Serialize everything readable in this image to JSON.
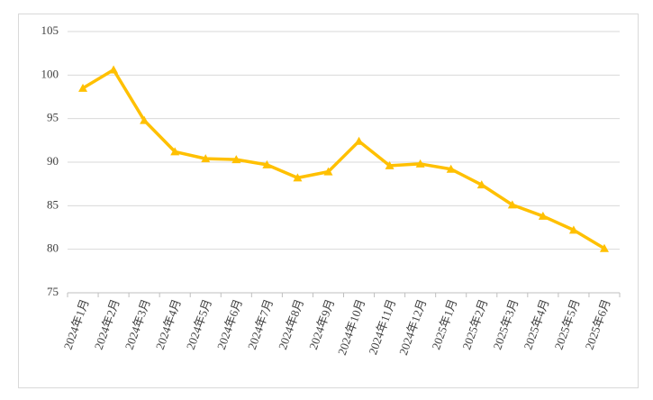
{
  "chart_data": {
    "type": "line",
    "categories": [
      "2024年1月",
      "2024年2月",
      "2024年3月",
      "2024年4月",
      "2024年5月",
      "2024年6月",
      "2024年7月",
      "2024年8月",
      "2024年9月",
      "2024年10月",
      "2024年11月",
      "2024年12月",
      "2025年1月",
      "2025年2月",
      "2025年3月",
      "2025年4月",
      "2025年5月",
      "2025年6月"
    ],
    "values": [
      98.5,
      100.6,
      94.8,
      91.2,
      90.4,
      90.3,
      89.7,
      88.2,
      88.9,
      92.4,
      89.6,
      89.8,
      89.2,
      87.4,
      85.1,
      83.8,
      82.2,
      80.1
    ],
    "color": "#ffc000",
    "ylim": [
      75,
      105
    ],
    "yticks": [
      75,
      80,
      85,
      90,
      95,
      100,
      105
    ],
    "grid": true,
    "marker": "triangle"
  }
}
